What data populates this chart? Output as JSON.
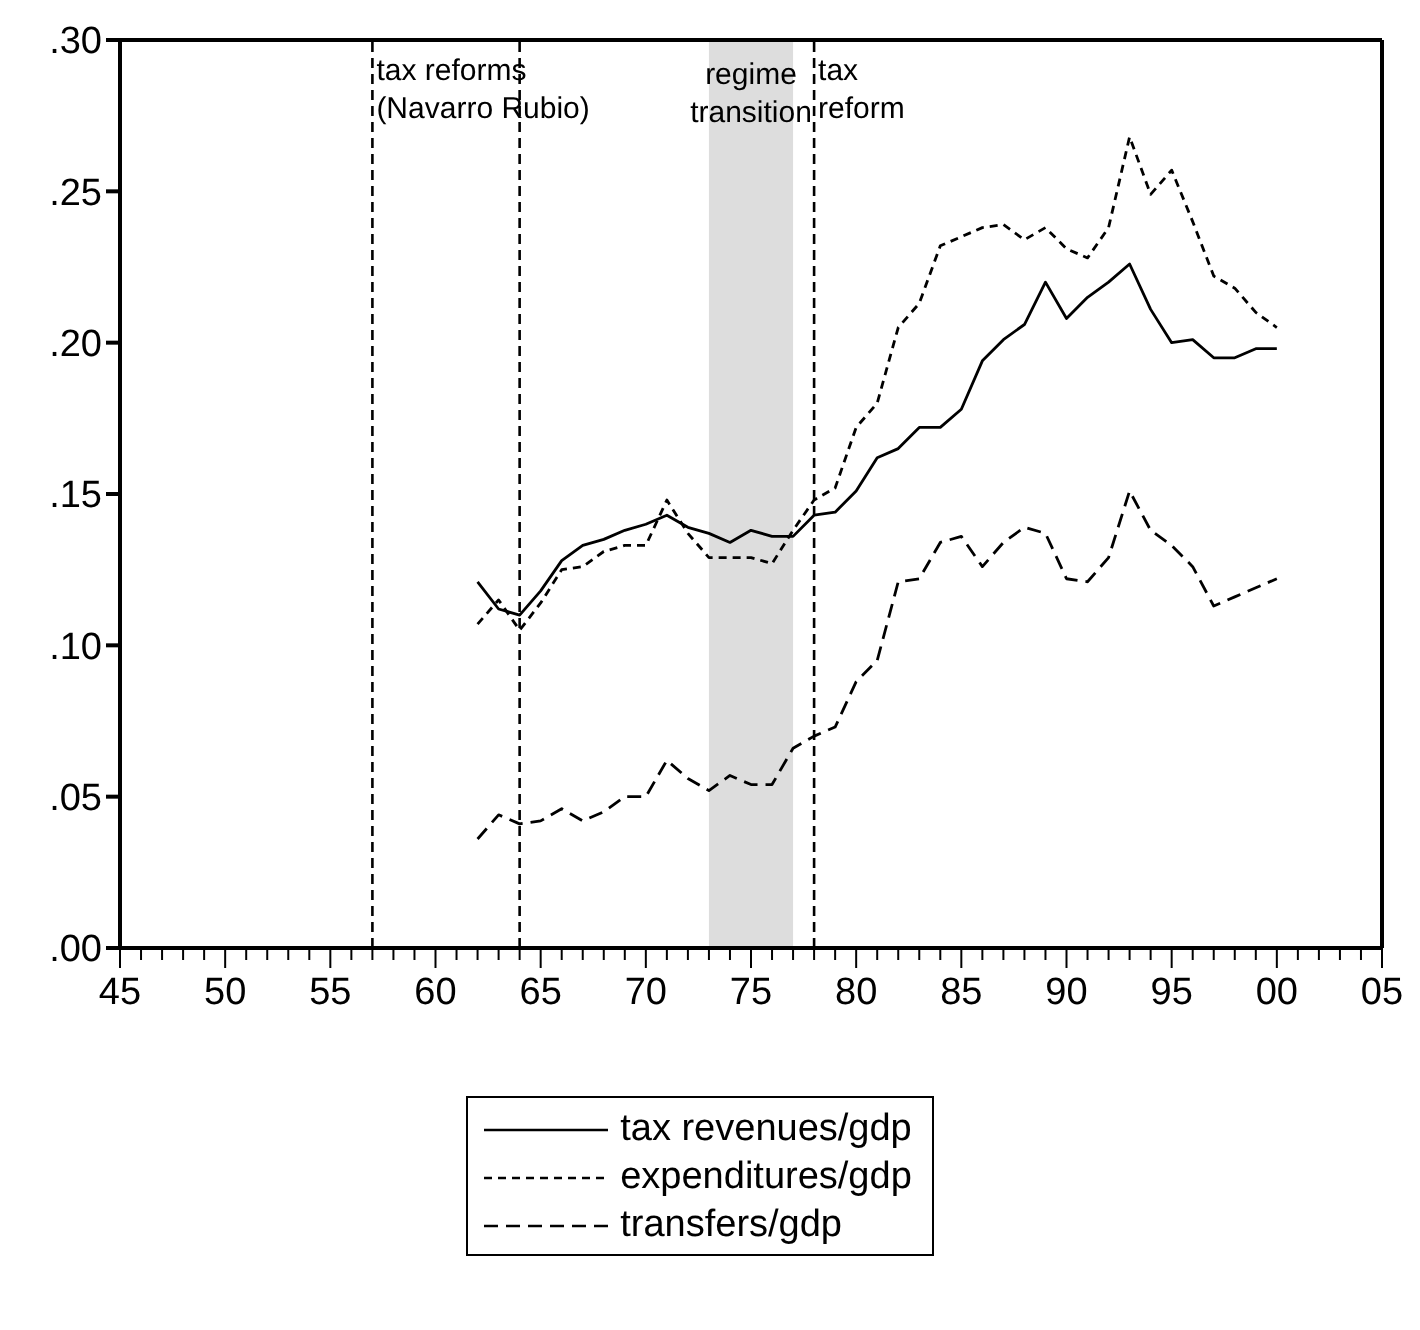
{
  "chart_data": {
    "type": "line",
    "x": [
      1962,
      1963,
      1964,
      1965,
      1966,
      1967,
      1968,
      1969,
      1970,
      1971,
      1972,
      1973,
      1974,
      1975,
      1976,
      1977,
      1978,
      1979,
      1980,
      1981,
      1982,
      1983,
      1984,
      1985,
      1986,
      1987,
      1988,
      1989,
      1990,
      1991,
      1992,
      1993,
      1994,
      1995,
      1996,
      1997,
      1998,
      1999,
      2000
    ],
    "series": [
      {
        "name": "tax revenues/gdp",
        "color": "#000000",
        "line_style": "solid",
        "values": [
          0.121,
          0.112,
          0.11,
          0.118,
          0.128,
          0.133,
          0.135,
          0.138,
          0.14,
          0.143,
          0.139,
          0.137,
          0.134,
          0.138,
          0.136,
          0.136,
          0.143,
          0.144,
          0.151,
          0.162,
          0.165,
          0.172,
          0.172,
          0.178,
          0.194,
          0.201,
          0.206,
          0.22,
          0.208,
          0.215,
          0.22,
          0.226,
          0.211,
          0.2,
          0.201,
          0.195,
          0.195,
          0.198,
          0.198
        ]
      },
      {
        "name": "expenditures/gdp",
        "color": "#000000",
        "line_style": "dotted",
        "values": [
          0.107,
          0.115,
          0.105,
          0.114,
          0.125,
          0.126,
          0.131,
          0.133,
          0.133,
          0.148,
          0.137,
          0.129,
          0.129,
          0.129,
          0.127,
          0.138,
          0.148,
          0.152,
          0.172,
          0.18,
          0.205,
          0.213,
          0.232,
          0.235,
          0.238,
          0.239,
          0.234,
          0.238,
          0.231,
          0.228,
          0.238,
          0.268,
          0.249,
          0.257,
          0.24,
          0.222,
          0.218,
          0.21,
          0.205
        ]
      },
      {
        "name": "transfers/gdp",
        "color": "#000000",
        "line_style": "dashed",
        "values": [
          0.036,
          0.044,
          0.041,
          0.042,
          0.046,
          0.042,
          0.045,
          0.05,
          0.05,
          0.062,
          0.056,
          0.052,
          0.057,
          0.054,
          0.054,
          0.066,
          0.07,
          0.073,
          0.088,
          0.095,
          0.121,
          0.122,
          0.134,
          0.136,
          0.126,
          0.134,
          0.139,
          0.137,
          0.122,
          0.121,
          0.129,
          0.151,
          0.138,
          0.133,
          0.126,
          0.113,
          0.116,
          0.119,
          0.122
        ]
      }
    ],
    "xlim": [
      1945,
      2005
    ],
    "xticks": [
      {
        "value": 1945,
        "label": "45"
      },
      {
        "value": 1946,
        "label": null
      },
      {
        "value": 1947,
        "label": null
      },
      {
        "value": 1948,
        "label": null
      },
      {
        "value": 1949,
        "label": null
      },
      {
        "value": 1950,
        "label": "50"
      },
      {
        "value": 1951,
        "label": null
      },
      {
        "value": 1952,
        "label": null
      },
      {
        "value": 1953,
        "label": null
      },
      {
        "value": 1954,
        "label": null
      },
      {
        "value": 1955,
        "label": "55"
      },
      {
        "value": 1956,
        "label": null
      },
      {
        "value": 1957,
        "label": null
      },
      {
        "value": 1958,
        "label": null
      },
      {
        "value": 1959,
        "label": null
      },
      {
        "value": 1960,
        "label": "60"
      },
      {
        "value": 1961,
        "label": null
      },
      {
        "value": 1962,
        "label": null
      },
      {
        "value": 1963,
        "label": null
      },
      {
        "value": 1964,
        "label": null
      },
      {
        "value": 1965,
        "label": "65"
      },
      {
        "value": 1966,
        "label": null
      },
      {
        "value": 1967,
        "label": null
      },
      {
        "value": 1968,
        "label": null
      },
      {
        "value": 1969,
        "label": null
      },
      {
        "value": 1970,
        "label": "70"
      },
      {
        "value": 1971,
        "label": null
      },
      {
        "value": 1972,
        "label": null
      },
      {
        "value": 1973,
        "label": null
      },
      {
        "value": 1974,
        "label": null
      },
      {
        "value": 1975,
        "label": "75"
      },
      {
        "value": 1976,
        "label": null
      },
      {
        "value": 1977,
        "label": null
      },
      {
        "value": 1978,
        "label": null
      },
      {
        "value": 1979,
        "label": null
      },
      {
        "value": 1980,
        "label": "80"
      },
      {
        "value": 1981,
        "label": null
      },
      {
        "value": 1982,
        "label": null
      },
      {
        "value": 1983,
        "label": null
      },
      {
        "value": 1984,
        "label": null
      },
      {
        "value": 1985,
        "label": "85"
      },
      {
        "value": 1986,
        "label": null
      },
      {
        "value": 1987,
        "label": null
      },
      {
        "value": 1988,
        "label": null
      },
      {
        "value": 1989,
        "label": null
      },
      {
        "value": 1990,
        "label": "90"
      },
      {
        "value": 1991,
        "label": null
      },
      {
        "value": 1992,
        "label": null
      },
      {
        "value": 1993,
        "label": null
      },
      {
        "value": 1994,
        "label": null
      },
      {
        "value": 1995,
        "label": "95"
      },
      {
        "value": 1996,
        "label": null
      },
      {
        "value": 1997,
        "label": null
      },
      {
        "value": 1998,
        "label": null
      },
      {
        "value": 1999,
        "label": null
      },
      {
        "value": 2000,
        "label": "00"
      },
      {
        "value": 2001,
        "label": null
      },
      {
        "value": 2002,
        "label": null
      },
      {
        "value": 2003,
        "label": null
      },
      {
        "value": 2004,
        "label": null
      },
      {
        "value": 2005,
        "label": "05"
      }
    ],
    "ylim": [
      0,
      0.3
    ],
    "yticks": [
      {
        "value": 0,
        "label": ".00"
      },
      {
        "value": 0.05,
        "label": ".05"
      },
      {
        "value": 0.1,
        "label": ".10"
      },
      {
        "value": 0.15,
        "label": ".15"
      },
      {
        "value": 0.2,
        "label": ".20"
      },
      {
        "value": 0.25,
        "label": ".25"
      },
      {
        "value": 0.3,
        "label": ".30"
      }
    ],
    "ref_lines": [
      {
        "axis": "x",
        "value": 1957,
        "color": "#000000",
        "line_style": "dashed",
        "label": "tax reforms\n(Navarro Rubio)"
      },
      {
        "axis": "x",
        "value": 1964,
        "color": "#000000",
        "line_style": "dashed"
      },
      {
        "axis": "x",
        "value": 1978,
        "color": "#000000",
        "line_style": "dashed",
        "label": "tax\nreform"
      }
    ],
    "bands": [
      {
        "axis": "x",
        "from": 1973,
        "to": 1977,
        "color": "#dddddd",
        "label": "regime\ntransition"
      }
    ],
    "grid": false,
    "marker": "none",
    "legend": "bottom"
  }
}
